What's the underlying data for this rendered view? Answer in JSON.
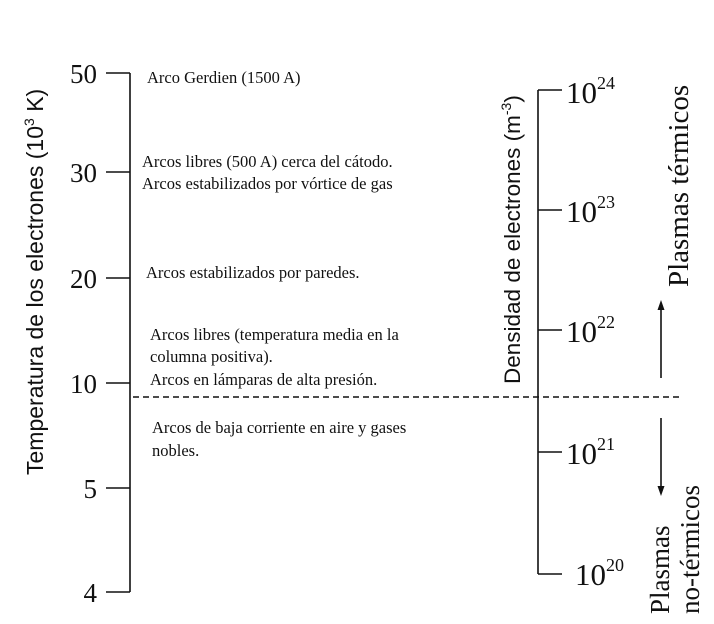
{
  "left_axis": {
    "title": "Temperatura de los electrones (10",
    "title_exp": "3",
    "title_unit": " K)",
    "ticks": [
      "50",
      "30",
      "20",
      "10",
      "5",
      "4"
    ]
  },
  "right_axis": {
    "title": "Densidad de electrones (m",
    "title_exp": "-3",
    "title_close": ")",
    "ticks": [
      {
        "base": "10",
        "exp": "24"
      },
      {
        "base": "10",
        "exp": "23"
      },
      {
        "base": "10",
        "exp": "22"
      },
      {
        "base": "10",
        "exp": "21"
      },
      {
        "base": "10",
        "exp": "20"
      }
    ]
  },
  "annotations": {
    "gerdien": "Arco Gerdien (1500 A)",
    "libres_catodo": "Arcos libres (500 A) cerca del cátodo.",
    "vortice": "Arcos estabilizados por vórtice de gas",
    "paredes": "Arcos estabilizados por paredes.",
    "libres_media_1": "Arcos libres (temperatura media en la",
    "libres_media_2": "columna positiva).",
    "lamparas": "Arcos en lámparas de alta presión.",
    "baja_1": "Arcos de baja corriente en aire y gases",
    "baja_2": "nobles."
  },
  "regions": {
    "thermal": "Plasmas térmicos",
    "nonthermal_1": "Plasmas",
    "nonthermal_2": "no-térmicos"
  }
}
